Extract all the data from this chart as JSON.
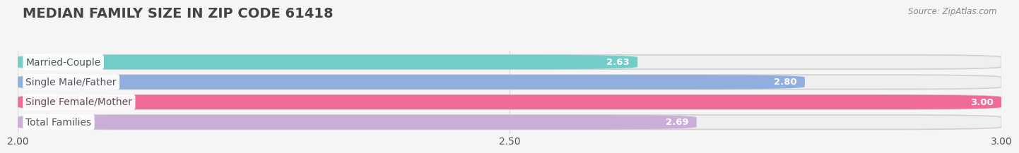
{
  "title": "MEDIAN FAMILY SIZE IN ZIP CODE 61418",
  "source": "Source: ZipAtlas.com",
  "categories": [
    "Married-Couple",
    "Single Male/Father",
    "Single Female/Mother",
    "Total Families"
  ],
  "values": [
    2.63,
    2.8,
    3.0,
    2.69
  ],
  "bar_colors": [
    "#72cdc8",
    "#90aede",
    "#f16b9a",
    "#c9aed8"
  ],
  "bar_bg_colors": [
    "#efefef",
    "#efefef",
    "#efefef",
    "#efefef"
  ],
  "xlim_min": 2.0,
  "xlim_max": 3.0,
  "xticks": [
    2.0,
    2.5,
    3.0
  ],
  "xticklabels": [
    "2.00",
    "2.50",
    "3.00"
  ],
  "label_fontsize": 10,
  "value_fontsize": 9.5,
  "title_fontsize": 14,
  "bar_height": 0.72,
  "bar_gap": 0.28,
  "background_color": "#f5f5f5",
  "grid_color": "#d8d8d8"
}
